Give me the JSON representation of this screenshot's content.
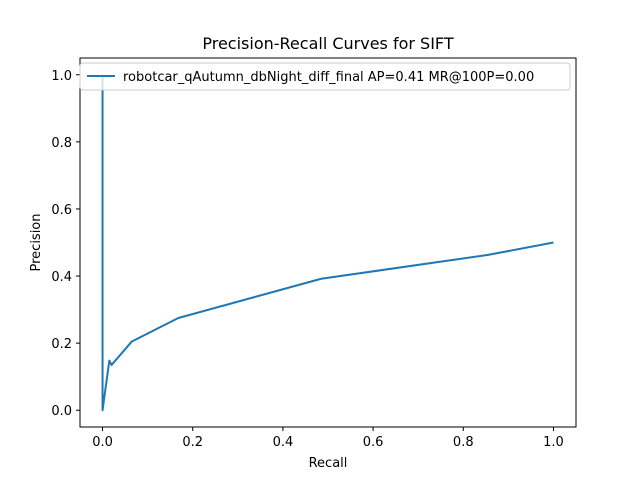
{
  "chart_data": {
    "type": "line",
    "title": "Precision-Recall Curves for SIFT",
    "xlabel": "Recall",
    "ylabel": "Precision",
    "xlim": [
      -0.05,
      1.05
    ],
    "ylim": [
      -0.05,
      1.05
    ],
    "xticks": [
      0.0,
      0.2,
      0.4,
      0.6,
      0.8,
      1.0
    ],
    "yticks": [
      0.0,
      0.2,
      0.4,
      0.6,
      0.8,
      1.0
    ],
    "xtick_labels": [
      "0.0",
      "0.2",
      "0.4",
      "0.6",
      "0.8",
      "1.0"
    ],
    "ytick_labels": [
      "0.0",
      "0.2",
      "0.4",
      "0.6",
      "0.8",
      "1.0"
    ],
    "grid": false,
    "legend_position": "top-right",
    "series": [
      {
        "name": "robotcar_qAutumn_dbNight_diff_final AP=0.41 MR@100P=0.00",
        "color": "#1f77b4",
        "x": [
          0.0,
          0.0,
          0.015,
          0.02,
          0.065,
          0.168,
          0.485,
          0.855,
          1.0
        ],
        "y": [
          1.0,
          0.0,
          0.148,
          0.135,
          0.205,
          0.275,
          0.392,
          0.463,
          0.5
        ]
      }
    ]
  }
}
